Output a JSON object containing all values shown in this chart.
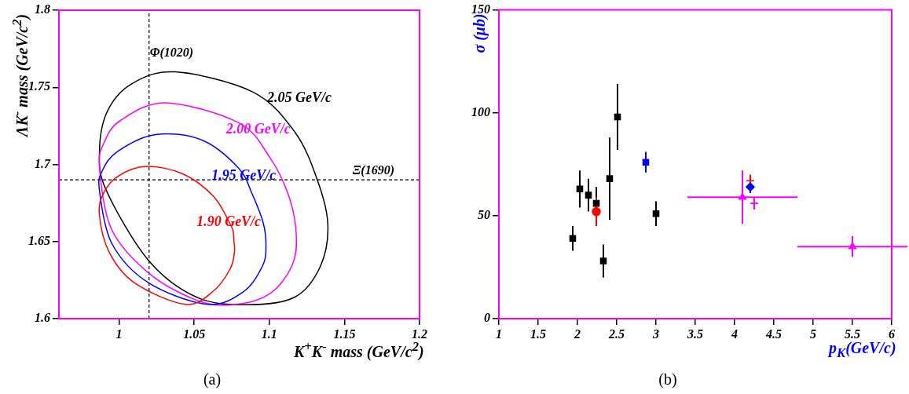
{
  "chart_data": [
    {
      "type": "line",
      "xlabel": "K$^{+}$K$^{-}$ mass (GeV/c$^{2}$)",
      "ylabel": "ΛK$^{-}$ mass (GeV/c$^{2}$)",
      "xlim": [
        0.96,
        1.2
      ],
      "xticks": [
        1,
        1.05,
        1.1,
        1.15,
        1.2
      ],
      "ylim": [
        1.6,
        1.8
      ],
      "yticks": [
        1.6,
        1.65,
        1.7,
        1.75,
        1.8
      ],
      "annotations": [
        "(a)",
        "2.05 GeV/c",
        "2.00 GeV/c",
        "1.95 GeV/c",
        "1.90 GeV/c"
      ],
      "ref_lines": [
        {
          "axis": "x",
          "value": 1.02,
          "label": "Φ(1020)",
          "line_style": "dashed"
        },
        {
          "axis": "y",
          "value": 1.69,
          "label": "Ξ(1690)",
          "line_style": "dashed"
        }
      ],
      "line_style": "solid"
    },
    {
      "type": "scatter",
      "xlabel": "p$_{K}$(GeV/c)",
      "ylabel": "σ (μb)",
      "xlim": [
        1,
        6
      ],
      "xticks": [
        1,
        1.5,
        2,
        2.5,
        3,
        3.5,
        4,
        4.5,
        5,
        5.5,
        6
      ],
      "ylim": [
        0,
        150
      ],
      "yticks": [
        0,
        50,
        100,
        150
      ],
      "annotations": [
        "(b)"
      ],
      "series": [
        {
          "color": "#000000",
          "marker": "square",
          "x": [
            1.94,
            2.03,
            2.14,
            2.24,
            2.33,
            2.41,
            2.51
          ],
          "values": [
            39,
            63,
            60,
            56,
            28,
            68,
            98
          ],
          "errors": [
            6,
            9,
            8,
            8,
            8,
            20,
            16
          ]
        },
        {
          "color": "#ff0000",
          "marker": "circle",
          "x": [
            2.24
          ],
          "values": [
            52
          ],
          "errors": [
            7
          ]
        },
        {
          "color": "#0000ff",
          "marker": "square",
          "x": [
            2.87
          ],
          "values": [
            76
          ],
          "errors": [
            5
          ]
        },
        {
          "color": "#000000",
          "marker": "square",
          "x": [
            3.0
          ],
          "values": [
            51
          ],
          "errors": [
            6
          ]
        },
        {
          "color": "#ff00ff",
          "marker": "triangle",
          "x": [
            4.1,
            5.5
          ],
          "values": [
            59,
            35
          ],
          "errors": [
            13,
            5
          ],
          "xerrors": [
            0.7,
            0.7
          ]
        },
        {
          "color": "#0000ff",
          "marker": "diamond",
          "x": [
            4.2
          ],
          "values": [
            64
          ],
          "errors": [
            3
          ],
          "xerrors": [
            0.04
          ]
        },
        {
          "color": "#ff0000",
          "marker": "cross",
          "x": [
            4.2
          ],
          "values": [
            67
          ],
          "errors": [
            3
          ]
        },
        {
          "color": "#ff00ff",
          "marker": "cross",
          "x": [
            4.25
          ],
          "values": [
            56
          ],
          "errors": [
            3
          ],
          "xerrors": [
            0.04
          ]
        }
      ]
    }
  ]
}
